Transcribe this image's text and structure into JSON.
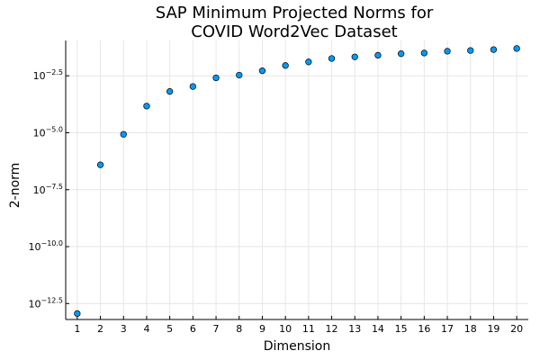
{
  "chart_data": {
    "type": "scatter",
    "title": [
      "SAP Minimum Projected Norms for",
      "COVID Word2Vec Dataset"
    ],
    "xlabel": "Dimension",
    "ylabel": "2-norm",
    "log_y": true,
    "x": [
      1,
      2,
      3,
      4,
      5,
      6,
      7,
      8,
      9,
      10,
      11,
      12,
      13,
      14,
      15,
      16,
      17,
      18,
      19,
      20
    ],
    "log10_y": [
      -12.94,
      -6.41,
      -5.07,
      -3.83,
      -3.19,
      -2.97,
      -2.59,
      -2.47,
      -2.28,
      -2.05,
      -1.89,
      -1.74,
      -1.67,
      -1.6,
      -1.53,
      -1.5,
      -1.42,
      -1.39,
      -1.35,
      -1.3
    ],
    "xticks": [
      1,
      2,
      3,
      4,
      5,
      6,
      7,
      8,
      9,
      10,
      11,
      12,
      13,
      14,
      15,
      16,
      17,
      18,
      19,
      20
    ],
    "yticks": [
      {
        "value": -12.5,
        "base": "10",
        "exp": "−12.5"
      },
      {
        "value": -10.0,
        "base": "10",
        "exp": "−10.0"
      },
      {
        "value": -7.5,
        "base": "10",
        "exp": "−7.5"
      },
      {
        "value": -5.0,
        "base": "10",
        "exp": "−5.0"
      },
      {
        "value": -2.5,
        "base": "10",
        "exp": "−2.5"
      }
    ],
    "xlim": [
      0.5,
      20.5
    ],
    "ylim": [
      -13.2,
      -0.95
    ],
    "grid": true,
    "legend": "none",
    "marker_color": "#009AFA"
  }
}
